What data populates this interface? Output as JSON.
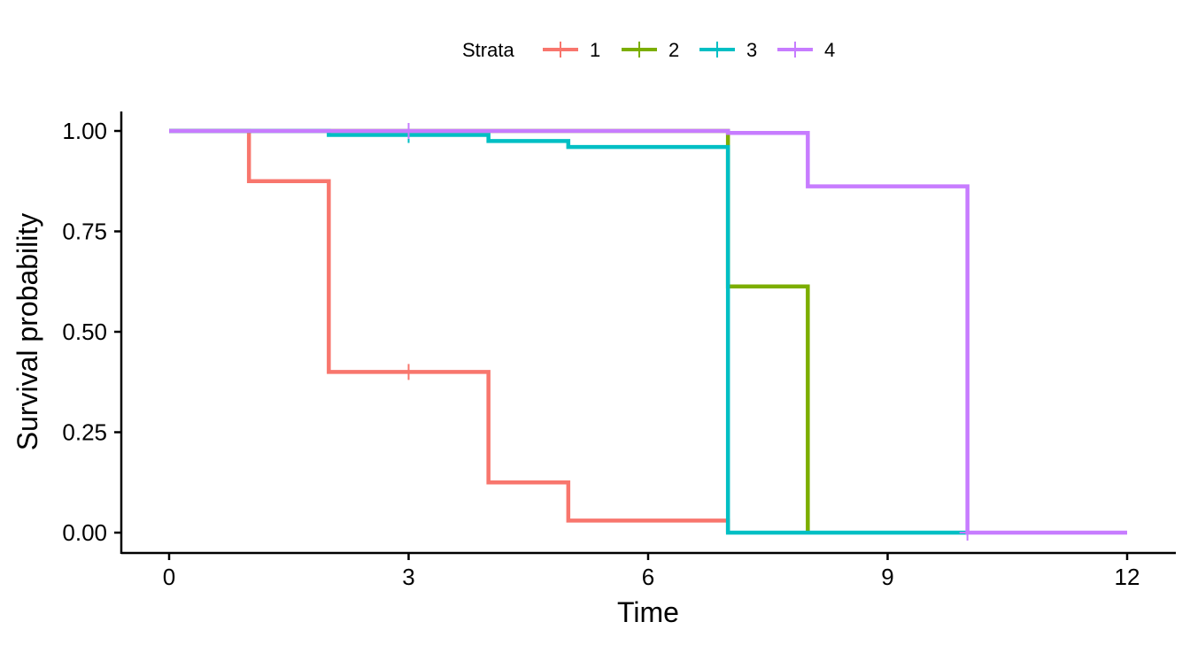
{
  "chart_data": {
    "type": "line",
    "step": true,
    "xlabel": "Time",
    "ylabel": "Survival probability",
    "xlim": [
      0,
      12
    ],
    "ylim": [
      0,
      1
    ],
    "x_ticks": [
      0,
      3,
      6,
      9,
      12
    ],
    "x_tick_labels": [
      "0",
      "3",
      "6",
      "9",
      "12"
    ],
    "y_ticks": [
      0,
      0.25,
      0.5,
      0.75,
      1.0
    ],
    "y_tick_labels": [
      "0.00",
      "0.25",
      "0.50",
      "0.75",
      "1.00"
    ],
    "grid": false,
    "legend": {
      "title": "Strata",
      "position": "top"
    },
    "series": [
      {
        "name": "1",
        "color": "#F8766D",
        "x": [
          0,
          1,
          2,
          4,
          5,
          7
        ],
        "y": [
          1.0,
          0.875,
          0.4,
          0.125,
          0.03,
          0.0
        ],
        "censored": [
          {
            "x": 3,
            "y": 0.4
          }
        ]
      },
      {
        "name": "2",
        "color": "#7CAE00",
        "x": [
          0,
          7,
          8
        ],
        "y": [
          1.0,
          0.613,
          0.0
        ],
        "censored": []
      },
      {
        "name": "3",
        "color": "#00BFC4",
        "x": [
          0,
          2,
          4,
          5,
          7,
          10
        ],
        "y": [
          1.0,
          0.99,
          0.975,
          0.96,
          0.0,
          0.0
        ],
        "censored": [
          {
            "x": 3,
            "y": 0.99
          }
        ]
      },
      {
        "name": "4",
        "color": "#C77CFF",
        "x": [
          0,
          7,
          8,
          10,
          12
        ],
        "y": [
          1.0,
          0.995,
          0.862,
          0.0,
          0.0
        ],
        "censored": [
          {
            "x": 3,
            "y": 1.0
          },
          {
            "x": 10,
            "y": 0.0
          }
        ]
      }
    ]
  }
}
